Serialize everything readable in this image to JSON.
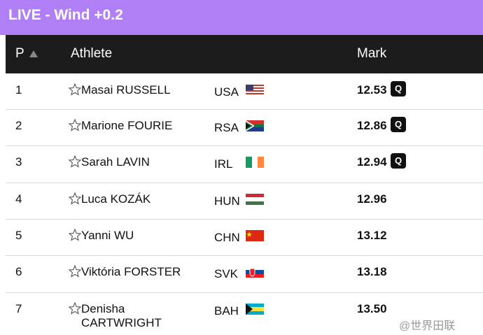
{
  "header": {
    "title": "LIVE - Wind +0.2"
  },
  "table": {
    "columns": [
      "P",
      "Athlete",
      "Mark"
    ],
    "rows": [
      {
        "position": 1,
        "athlete": "Masai RUSSELL",
        "country": "USA",
        "mark": "12.53",
        "qualifier": "Q"
      },
      {
        "position": 2,
        "athlete": "Marione FOURIE",
        "country": "RSA",
        "mark": "12.86",
        "qualifier": "Q"
      },
      {
        "position": 3,
        "athlete": "Sarah LAVIN",
        "country": "IRL",
        "mark": "12.94",
        "qualifier": "Q"
      },
      {
        "position": 4,
        "athlete": "Luca KOZÁK",
        "country": "HUN",
        "mark": "12.96"
      },
      {
        "position": 5,
        "athlete": "Yanni WU",
        "country": "CHN",
        "mark": "13.12"
      },
      {
        "position": 6,
        "athlete": "Viktória FORSTER",
        "country": "SVK",
        "mark": "13.18"
      },
      {
        "position": 7,
        "athlete": "Denisha CARTWRIGHT",
        "country": "BAH",
        "mark": "13.50"
      }
    ]
  },
  "watermark": "@世界田联"
}
